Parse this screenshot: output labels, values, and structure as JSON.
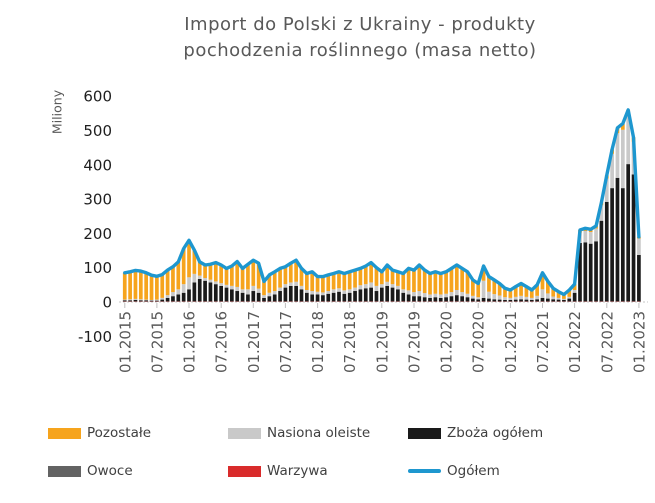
{
  "chart_data": {
    "type": "bar",
    "subtype": "stacked-bars-with-total-line",
    "title": "Import do Polski z Ukrainy - produkty pochodzenia roślinnego (masa netto)",
    "ylabel": "Miliony",
    "xlabel": "",
    "ylim": [
      -100,
      600
    ],
    "grid": false,
    "legend_position": "bottom",
    "y_ticks": [
      600,
      500,
      400,
      300,
      200,
      100,
      0,
      -100
    ],
    "x_tick_labels": [
      "01.2015",
      "07.2015",
      "01.2016",
      "07.2016",
      "01.2017",
      "07.2017",
      "01.2018",
      "07.2018",
      "01.2019",
      "07.2019",
      "01.2020",
      "07.2020",
      "01.2021",
      "07.2021",
      "01.2022",
      "07.2022",
      "01.2023"
    ],
    "x_tick_interval_months": 6,
    "x_range_months": "01.2015 - 01.2023",
    "series": [
      {
        "key": "warzywa",
        "name": "Warzywa",
        "color": "#D92B2B",
        "values": [
          1,
          1,
          1,
          1,
          1,
          1,
          1,
          1,
          1,
          1,
          1,
          1,
          1,
          1,
          1,
          1,
          1,
          1,
          1,
          1,
          1,
          1,
          1,
          1,
          1,
          1,
          1,
          1,
          1,
          1,
          1,
          1,
          1,
          1,
          1,
          1,
          1,
          1,
          1,
          1,
          1,
          1,
          1,
          1,
          1,
          1,
          1,
          1,
          1,
          1,
          1,
          1,
          1,
          1,
          1,
          1,
          1,
          1,
          1,
          1,
          1,
          1,
          1,
          1,
          1,
          1,
          1,
          1,
          1,
          1,
          1,
          1,
          1,
          1,
          1,
          1,
          1,
          1,
          1,
          1,
          1,
          1,
          1,
          1,
          1,
          1,
          1,
          1,
          1,
          1,
          1,
          1,
          1,
          1,
          1,
          1,
          1
        ]
      },
      {
        "key": "owoce",
        "name": "Owoce",
        "color": "#636363",
        "values": [
          1,
          1,
          1,
          1,
          1,
          1,
          1,
          1,
          1,
          1,
          1,
          1,
          1,
          1,
          1,
          1,
          1,
          1,
          1,
          1,
          1,
          1,
          1,
          1,
          1,
          1,
          1,
          1,
          1,
          1,
          1,
          1,
          1,
          1,
          1,
          1,
          1,
          1,
          1,
          1,
          1,
          1,
          1,
          1,
          1,
          1,
          1,
          1,
          1,
          1,
          1,
          1,
          1,
          1,
          1,
          1,
          1,
          1,
          1,
          1,
          1,
          1,
          1,
          1,
          1,
          1,
          1,
          1,
          1,
          1,
          1,
          1,
          1,
          1,
          1,
          1,
          1,
          1,
          1,
          1,
          1,
          1,
          1,
          1,
          1,
          1,
          1,
          1,
          1,
          1,
          1,
          1,
          1,
          1,
          1,
          1,
          1
        ]
      },
      {
        "key": "zboza-ogolem",
        "name": "Zboża ogółem",
        "color": "#1A1A1A",
        "values": [
          3,
          3,
          4,
          3,
          3,
          2,
          2,
          5,
          10,
          15,
          20,
          25,
          35,
          55,
          65,
          60,
          55,
          50,
          45,
          40,
          35,
          30,
          25,
          20,
          30,
          25,
          10,
          15,
          20,
          30,
          40,
          45,
          45,
          35,
          25,
          20,
          20,
          18,
          22,
          25,
          28,
          22,
          25,
          30,
          35,
          38,
          40,
          30,
          40,
          45,
          40,
          35,
          25,
          20,
          15,
          15,
          12,
          10,
          12,
          10,
          12,
          15,
          18,
          15,
          12,
          8,
          6,
          10,
          8,
          6,
          5,
          4,
          4,
          5,
          6,
          5,
          4,
          6,
          10,
          8,
          6,
          5,
          4,
          8,
          25,
          170,
          172,
          168,
          175,
          235,
          290,
          330,
          360,
          330,
          400,
          370,
          135
        ]
      },
      {
        "key": "nasiona-oleiste",
        "name": "Nasiona oleiste",
        "color": "#C9C9C9",
        "values": [
          2,
          3,
          3,
          3,
          2,
          2,
          3,
          5,
          8,
          12,
          15,
          25,
          35,
          25,
          10,
          8,
          8,
          8,
          8,
          8,
          10,
          12,
          10,
          15,
          15,
          12,
          8,
          10,
          10,
          10,
          10,
          10,
          12,
          10,
          8,
          10,
          8,
          8,
          8,
          10,
          10,
          10,
          10,
          10,
          12,
          12,
          15,
          15,
          10,
          12,
          10,
          10,
          10,
          12,
          12,
          15,
          12,
          10,
          10,
          10,
          10,
          12,
          15,
          12,
          10,
          8,
          6,
          50,
          20,
          15,
          12,
          8,
          6,
          8,
          10,
          8,
          6,
          10,
          25,
          15,
          8,
          5,
          3,
          5,
          8,
          30,
          33,
          34,
          37,
          45,
          68,
          100,
          130,
          170,
          140,
          95,
          48
        ]
      },
      {
        "key": "pozostale",
        "name": "Pozostałe",
        "color": "#F6A41D",
        "values": [
          78,
          80,
          83,
          82,
          78,
          72,
          68,
          68,
          73,
          74,
          80,
          104,
          108,
          69,
          40,
          38,
          45,
          55,
          53,
          48,
          58,
          74,
          61,
          73,
          75,
          74,
          40,
          52,
          56,
          56,
          51,
          56,
          63,
          51,
          48,
          56,
          44,
          46,
          47,
          46,
          48,
          49,
          51,
          51,
          49,
          53,
          58,
          53,
          36,
          49,
          41,
          41,
          46,
          64,
          64,
          76,
          67,
          61,
          64,
          61,
          64,
          69,
          73,
          69,
          64,
          46,
          40,
          43,
          44,
          41,
          35,
          26,
          23,
          30,
          36,
          30,
          23,
          32,
          48,
          35,
          24,
          18,
          13,
          20,
          17,
          8,
          8,
          8,
          8,
          8,
          10,
          13,
          16,
          18,
          18,
          13,
          5
        ]
      }
    ],
    "line_series": {
      "key": "ogolem",
      "name": "Ogółem",
      "color": "#1E97CF",
      "values": [
        85,
        88,
        92,
        90,
        85,
        78,
        75,
        80,
        93,
        103,
        117,
        156,
        180,
        151,
        117,
        108,
        110,
        115,
        108,
        98,
        105,
        118,
        98,
        110,
        122,
        113,
        60,
        79,
        88,
        98,
        103,
        113,
        122,
        98,
        83,
        88,
        74,
        74,
        79,
        83,
        88,
        83,
        88,
        93,
        98,
        105,
        115,
        100,
        88,
        108,
        93,
        88,
        83,
        98,
        93,
        108,
        93,
        83,
        88,
        83,
        88,
        98,
        108,
        98,
        88,
        64,
        54,
        105,
        74,
        64,
        54,
        40,
        35,
        45,
        54,
        45,
        35,
        50,
        85,
        60,
        40,
        30,
        22,
        35,
        52,
        210,
        215,
        212,
        222,
        290,
        370,
        445,
        508,
        520,
        560,
        480,
        190
      ]
    },
    "legend": [
      {
        "label": "Pozostałe",
        "color": "#F6A41D",
        "marker": "box"
      },
      {
        "label": "Nasiona oleiste",
        "color": "#C9C9C9",
        "marker": "box"
      },
      {
        "label": "Zboża ogółem",
        "color": "#1A1A1A",
        "marker": "box"
      },
      {
        "label": "Owoce",
        "color": "#636363",
        "marker": "box"
      },
      {
        "label": "Warzywa",
        "color": "#D92B2B",
        "marker": "box"
      },
      {
        "label": "Ogółem",
        "color": "#1E97CF",
        "marker": "line"
      }
    ]
  }
}
